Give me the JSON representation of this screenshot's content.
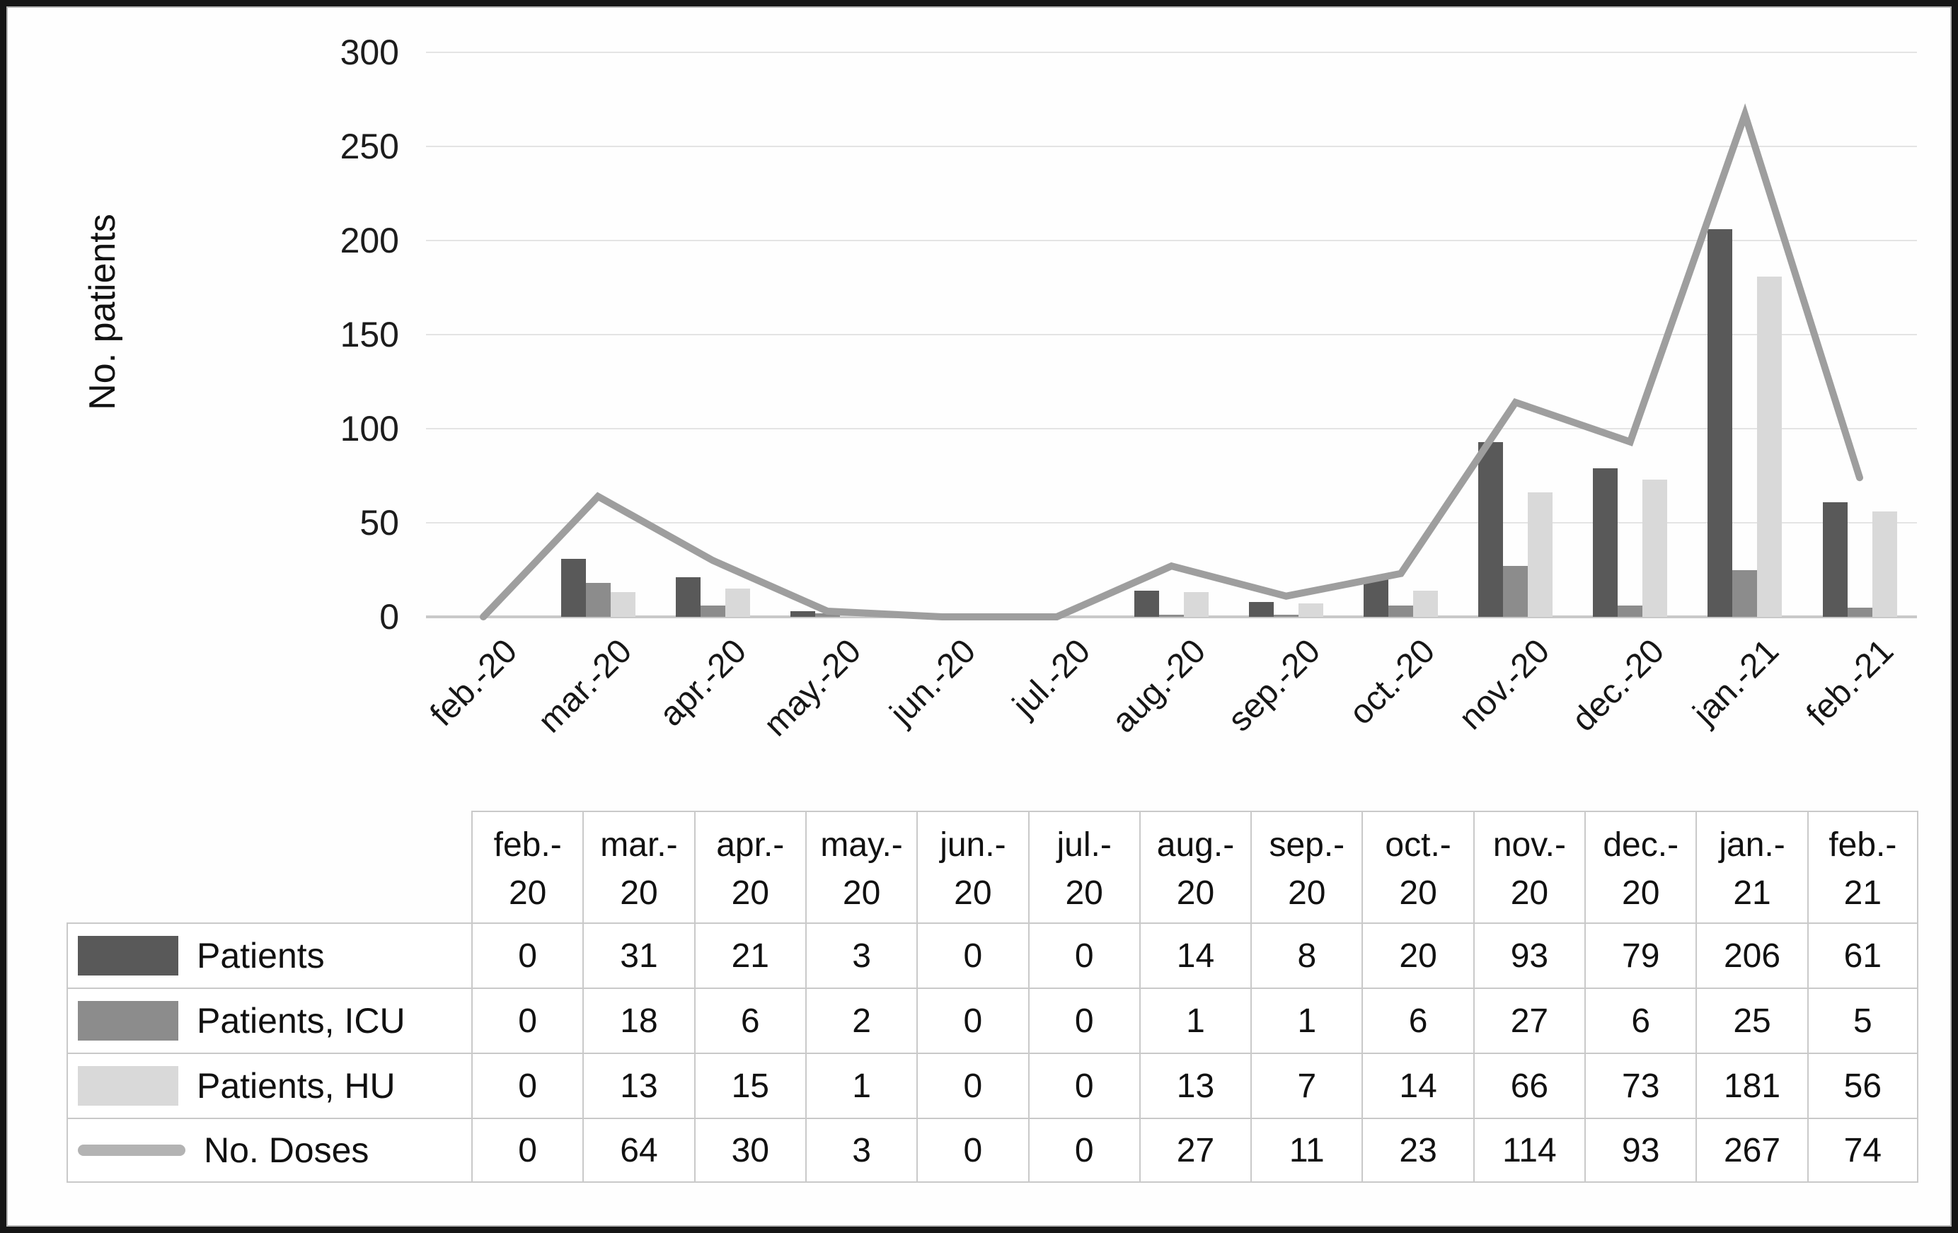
{
  "figure": {
    "y_axis_title": "No. patients"
  },
  "chart_data": {
    "type": "bar+line combo",
    "categories": [
      "feb.-20",
      "mar.-20",
      "apr.-20",
      "may.-20",
      "jun.-20",
      "jul.-20",
      "aug.-20",
      "sep.-20",
      "oct.-20",
      "nov.-20",
      "dec.-20",
      "jan.-21",
      "feb.-21"
    ],
    "series": [
      {
        "name": "Patients",
        "type": "bar",
        "color": "#595959",
        "values": [
          0,
          31,
          21,
          3,
          0,
          0,
          14,
          8,
          20,
          93,
          79,
          206,
          61
        ]
      },
      {
        "name": "Patients, ICU",
        "type": "bar",
        "color": "#8c8c8c",
        "values": [
          0,
          18,
          6,
          2,
          0,
          0,
          1,
          1,
          6,
          27,
          6,
          25,
          5
        ]
      },
      {
        "name": "Patients, HU",
        "type": "bar",
        "color": "#d9d9d9",
        "values": [
          0,
          13,
          15,
          1,
          0,
          0,
          13,
          7,
          14,
          66,
          73,
          181,
          56
        ]
      },
      {
        "name": "No. Doses",
        "type": "line",
        "color": "#9e9e9e",
        "values": [
          0,
          64,
          30,
          3,
          0,
          0,
          27,
          11,
          23,
          114,
          93,
          267,
          74
        ]
      }
    ],
    "title": "",
    "xlabel": "",
    "ylabel": "No. patients",
    "ylim": [
      0,
      300
    ],
    "yticks": [
      300,
      250,
      200,
      150,
      100,
      50,
      0
    ],
    "grid": true,
    "legend_position": "table-left-column"
  },
  "table": {
    "header_line1": [
      "feb.-",
      "mar.-",
      "apr.-",
      "may.-",
      "jun.-",
      "jul.-",
      "aug.-",
      "sep.-",
      "oct.-",
      "nov.-",
      "dec.-",
      "jan.-",
      "feb.-"
    ],
    "header_line2": [
      "20",
      "20",
      "20",
      "20",
      "20",
      "20",
      "20",
      "20",
      "20",
      "20",
      "20",
      "21",
      "21"
    ],
    "rows": [
      {
        "label": "Patients",
        "swatch": "bar",
        "color": "#595959",
        "values": [
          "0",
          "31",
          "21",
          "3",
          "0",
          "0",
          "14",
          "8",
          "20",
          "93",
          "79",
          "206",
          "61"
        ]
      },
      {
        "label": "Patients, ICU",
        "swatch": "bar",
        "color": "#8c8c8c",
        "values": [
          "0",
          "18",
          "6",
          "2",
          "0",
          "0",
          "1",
          "1",
          "6",
          "27",
          "6",
          "25",
          "5"
        ]
      },
      {
        "label": "Patients, HU",
        "swatch": "bar",
        "color": "#d9d9d9",
        "values": [
          "0",
          "13",
          "15",
          "1",
          "0",
          "0",
          "13",
          "7",
          "14",
          "66",
          "73",
          "181",
          "56"
        ]
      },
      {
        "label": "No. Doses",
        "swatch": "line",
        "color": "#b3b3b3",
        "values": [
          "0",
          "64",
          "30",
          "3",
          "0",
          "0",
          "27",
          "11",
          "23",
          "114",
          "93",
          "267",
          "74"
        ]
      }
    ]
  }
}
